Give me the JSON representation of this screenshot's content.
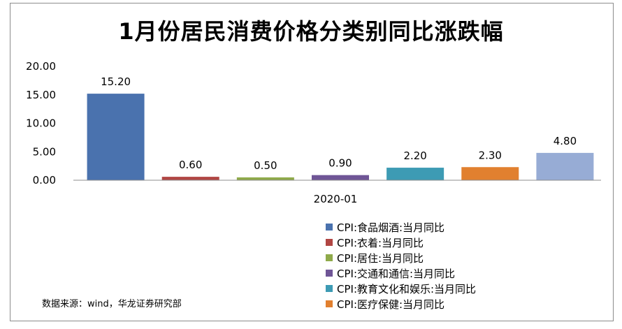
{
  "chart_data": {
    "type": "bar",
    "title": "1月份居民消费价格分类别同比涨跌幅",
    "categories": [
      "2020-01"
    ],
    "ylim": [
      0,
      20
    ],
    "yticks": [
      "0.00",
      "5.00",
      "10.00",
      "15.00",
      "20.00"
    ],
    "series": [
      {
        "name": "CPI:食品烟酒:当月同比",
        "value": 15.2,
        "label": "15.20",
        "color": "#4a72ae"
      },
      {
        "name": "CPI:衣着:当月同比",
        "value": 0.6,
        "label": "0.60",
        "color": "#b14643"
      },
      {
        "name": "CPI:居住:当月同比",
        "value": 0.5,
        "label": "0.50",
        "color": "#8faa4a"
      },
      {
        "name": "CPI:交通和通信:当月同比",
        "value": 0.9,
        "label": "0.90",
        "color": "#6f5596"
      },
      {
        "name": "CPI:教育文化和娱乐:当月同比",
        "value": 2.2,
        "label": "2.20",
        "color": "#3d9bb4"
      },
      {
        "name": "CPI:医疗保健:当月同比",
        "value": 2.3,
        "label": "2.30",
        "color": "#e1802f"
      },
      {
        "name": "",
        "value": 4.8,
        "label": "4.80",
        "color": "#97acd5"
      }
    ],
    "legend_position": "bottom-right",
    "grid": false
  },
  "source": "数据来源：wind，华龙证券研究部"
}
